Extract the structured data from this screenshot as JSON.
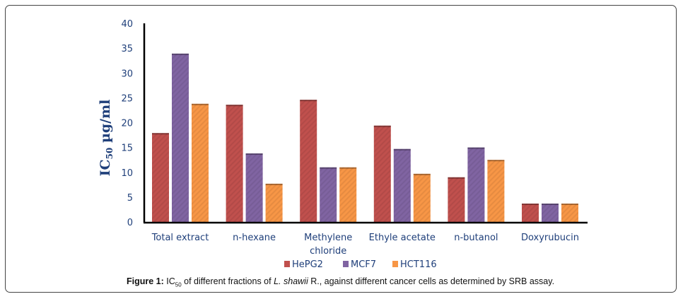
{
  "chart_data": {
    "type": "bar",
    "title": "",
    "xlabel": "",
    "ylabel": "IC50 µg/ml",
    "ylabel_main": "IC",
    "ylabel_sub": "50",
    "ylabel_unit": " µg/ml",
    "ylim": [
      0,
      40
    ],
    "yticks": [
      "0",
      "5",
      "10",
      "15",
      "20",
      "25",
      "30",
      "35",
      "40"
    ],
    "grid": false,
    "legend_position": "bottom",
    "categories": [
      [
        "Total extract"
      ],
      [
        "n-hexane"
      ],
      [
        "Methylene",
        "chloride"
      ],
      [
        "Ethyle acetate"
      ],
      [
        "n-butanol"
      ],
      [
        "Doxyrubucin"
      ]
    ],
    "series": [
      {
        "name": "HePG2",
        "color": "#c0504d",
        "values": [
          17.9,
          23.6,
          24.6,
          19.4,
          9.0,
          3.7
        ]
      },
      {
        "name": "MCF7",
        "color": "#8064a2",
        "values": [
          33.9,
          13.8,
          11.0,
          14.7,
          15.0,
          3.7
        ]
      },
      {
        "name": "HCT116",
        "color": "#f79646",
        "values": [
          23.8,
          7.7,
          11.0,
          9.7,
          12.5,
          3.7
        ]
      }
    ]
  },
  "caption": {
    "label": "Figure 1:",
    "ic": " IC",
    "sub": "50",
    "text1": " of different fractions of ",
    "species": "L. shawii",
    "text2": " R., against different cancer cells as determined by SRB assay."
  }
}
